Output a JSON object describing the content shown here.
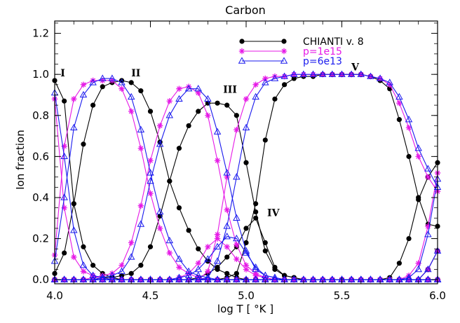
{
  "chart_data": {
    "type": "line",
    "title": "Carbon",
    "xlabel": "log T [ °K ]",
    "ylabel": "Ion fraction",
    "xlim": [
      4.0,
      6.0
    ],
    "ylim": [
      -0.02,
      1.26
    ],
    "xticks": [
      4.0,
      4.5,
      5.0,
      5.5,
      6.0
    ],
    "xtick_labels": [
      "4.0",
      "4.5",
      "5.0",
      "5.5",
      "6.0"
    ],
    "yticks": [
      0.0,
      0.2,
      0.4,
      0.6,
      0.8,
      1.0,
      1.2
    ],
    "ytick_labels": [
      "0.0",
      "0.2",
      "0.4",
      "0.6",
      "0.8",
      "1.0",
      "1.2"
    ],
    "grid": false,
    "legend_position": "top-right",
    "ion_labels": [
      {
        "text": "I",
        "x": 4.03,
        "y": 0.99
      },
      {
        "text": "II",
        "x": 4.4,
        "y": 0.99
      },
      {
        "text": "III",
        "x": 4.88,
        "y": 0.91
      },
      {
        "text": "IV",
        "x": 5.11,
        "y": 0.31
      },
      {
        "text": "V",
        "x": 5.55,
        "y": 1.02
      }
    ],
    "x": [
      4.0,
      4.05,
      4.1,
      4.15,
      4.2,
      4.25,
      4.3,
      4.35,
      4.4,
      4.45,
      4.5,
      4.55,
      4.6,
      4.65,
      4.7,
      4.75,
      4.8,
      4.85,
      4.9,
      4.95,
      5.0,
      5.05,
      5.1,
      5.15,
      5.2,
      5.25,
      5.3,
      5.35,
      5.4,
      5.45,
      5.5,
      5.55,
      5.6,
      5.65,
      5.7,
      5.75,
      5.8,
      5.85,
      5.9,
      5.95,
      6.0
    ],
    "series": [
      {
        "name": "CHIANTI v. 8",
        "group": "CHIANTI v. 8",
        "color": "#000000",
        "marker": "circle",
        "ion": "I",
        "values": [
          0.97,
          0.87,
          0.37,
          0.16,
          0.07,
          0.03,
          0.01,
          0.0,
          0.0,
          0.0,
          0.0,
          0.0,
          0.0,
          0.0,
          0.0,
          0.0,
          0.0,
          0.0,
          0.0,
          0.0,
          0.0,
          0.0,
          0.0,
          0.0,
          0.0,
          0.0,
          0.0,
          0.0,
          0.0,
          0.0,
          0.0,
          0.0,
          0.0,
          0.0,
          0.0,
          0.0,
          0.0,
          0.0,
          0.0,
          0.0,
          0.0
        ]
      },
      {
        "name": "CHIANTI v. 8",
        "group": "CHIANTI v. 8",
        "color": "#000000",
        "marker": "circle",
        "ion": "II",
        "values": [
          0.03,
          0.13,
          0.37,
          0.66,
          0.85,
          0.94,
          0.96,
          0.97,
          0.96,
          0.92,
          0.82,
          0.67,
          0.48,
          0.35,
          0.24,
          0.15,
          0.09,
          0.05,
          0.03,
          0.01,
          0.0,
          0.0,
          0.0,
          0.0,
          0.0,
          0.0,
          0.0,
          0.0,
          0.0,
          0.0,
          0.0,
          0.0,
          0.0,
          0.0,
          0.0,
          0.0,
          0.0,
          0.0,
          0.0,
          0.0,
          0.0
        ]
      },
      {
        "name": "CHIANTI v. 8",
        "group": "CHIANTI v. 8",
        "color": "#000000",
        "marker": "circle",
        "ion": "III",
        "values": [
          0.0,
          0.0,
          0.0,
          0.0,
          0.0,
          0.01,
          0.01,
          0.02,
          0.03,
          0.07,
          0.16,
          0.31,
          0.48,
          0.64,
          0.75,
          0.82,
          0.86,
          0.86,
          0.85,
          0.8,
          0.57,
          0.33,
          0.14,
          0.05,
          0.02,
          0.01,
          0.0,
          0.0,
          0.0,
          0.0,
          0.0,
          0.0,
          0.0,
          0.0,
          0.0,
          0.0,
          0.0,
          0.0,
          0.0,
          0.0,
          0.0
        ]
      },
      {
        "name": "CHIANTI v. 8",
        "group": "CHIANTI v. 8",
        "color": "#000000",
        "marker": "circle",
        "ion": "IV",
        "values": [
          0.0,
          0.0,
          0.0,
          0.0,
          0.0,
          0.0,
          0.0,
          0.0,
          0.0,
          0.0,
          0.0,
          0.0,
          0.0,
          0.0,
          0.0,
          0.01,
          0.03,
          0.06,
          0.11,
          0.16,
          0.25,
          0.3,
          0.18,
          0.06,
          0.02,
          0.01,
          0.0,
          0.0,
          0.0,
          0.0,
          0.0,
          0.0,
          0.0,
          0.0,
          0.0,
          0.0,
          0.0,
          0.0,
          0.0,
          0.0,
          0.0
        ]
      },
      {
        "name": "CHIANTI v. 8",
        "group": "CHIANTI v. 8",
        "color": "#000000",
        "marker": "circle",
        "ion": "V",
        "values": [
          0.0,
          0.0,
          0.0,
          0.0,
          0.0,
          0.0,
          0.0,
          0.0,
          0.0,
          0.0,
          0.0,
          0.0,
          0.0,
          0.0,
          0.0,
          0.0,
          0.0,
          0.0,
          0.01,
          0.03,
          0.18,
          0.37,
          0.68,
          0.88,
          0.95,
          0.98,
          0.99,
          0.99,
          1.0,
          1.0,
          1.0,
          1.0,
          1.0,
          0.99,
          0.97,
          0.93,
          0.78,
          0.6,
          0.4,
          0.27,
          0.26
        ]
      },
      {
        "name": "CHIANTI v. 8",
        "group": "CHIANTI v. 8",
        "color": "#000000",
        "marker": "circle",
        "ion": "VI",
        "values": [
          0.0,
          0.0,
          0.0,
          0.0,
          0.0,
          0.0,
          0.0,
          0.0,
          0.0,
          0.0,
          0.0,
          0.0,
          0.0,
          0.0,
          0.0,
          0.0,
          0.0,
          0.0,
          0.0,
          0.0,
          0.0,
          0.0,
          0.0,
          0.0,
          0.0,
          0.0,
          0.0,
          0.0,
          0.0,
          0.0,
          0.0,
          0.0,
          0.0,
          0.0,
          0.0,
          0.01,
          0.08,
          0.2,
          0.39,
          0.5,
          0.57
        ]
      },
      {
        "name": "CHIANTI v. 8",
        "group": "CHIANTI v. 8",
        "color": "#000000",
        "marker": "circle",
        "ion": "VII",
        "values": [
          0.0,
          0.0,
          0.0,
          0.0,
          0.0,
          0.0,
          0.0,
          0.0,
          0.0,
          0.0,
          0.0,
          0.0,
          0.0,
          0.0,
          0.0,
          0.0,
          0.0,
          0.0,
          0.0,
          0.0,
          0.0,
          0.0,
          0.0,
          0.0,
          0.0,
          0.0,
          0.0,
          0.0,
          0.0,
          0.0,
          0.0,
          0.0,
          0.0,
          0.0,
          0.0,
          0.0,
          0.0,
          0.0,
          0.0,
          0.05,
          0.14
        ]
      },
      {
        "name": "p=1e15",
        "group": "p=1e15",
        "color": "#e619e6",
        "marker": "asterisk",
        "ion": "I",
        "values": [
          0.88,
          0.35,
          0.11,
          0.04,
          0.02,
          0.0,
          0.0,
          0.0,
          0.0,
          0.0,
          0.0,
          0.0,
          0.0,
          0.0,
          0.0,
          0.0,
          0.0,
          0.0,
          0.0,
          0.0,
          0.0,
          0.0,
          0.0,
          0.0,
          0.0,
          0.0,
          0.0,
          0.0,
          0.0,
          0.0,
          0.0,
          0.0,
          0.0,
          0.0,
          0.0,
          0.0,
          0.0,
          0.0,
          0.0,
          0.0,
          0.0
        ]
      },
      {
        "name": "p=1e15",
        "group": "p=1e15",
        "color": "#e619e6",
        "marker": "asterisk",
        "ion": "II",
        "values": [
          0.12,
          0.65,
          0.88,
          0.95,
          0.97,
          0.97,
          0.97,
          0.93,
          0.82,
          0.64,
          0.42,
          0.25,
          0.13,
          0.06,
          0.03,
          0.01,
          0.0,
          0.0,
          0.0,
          0.0,
          0.0,
          0.0,
          0.0,
          0.0,
          0.0,
          0.0,
          0.0,
          0.0,
          0.0,
          0.0,
          0.0,
          0.0,
          0.0,
          0.0,
          0.0,
          0.0,
          0.0,
          0.0,
          0.0,
          0.0,
          0.0
        ]
      },
      {
        "name": "p=1e15",
        "group": "p=1e15",
        "color": "#e619e6",
        "marker": "asterisk",
        "ion": "III",
        "values": [
          0.0,
          0.0,
          0.0,
          0.0,
          0.01,
          0.02,
          0.03,
          0.07,
          0.18,
          0.36,
          0.58,
          0.75,
          0.87,
          0.93,
          0.94,
          0.91,
          0.8,
          0.58,
          0.34,
          0.17,
          0.07,
          0.03,
          0.01,
          0.0,
          0.0,
          0.0,
          0.0,
          0.0,
          0.0,
          0.0,
          0.0,
          0.0,
          0.0,
          0.0,
          0.0,
          0.0,
          0.0,
          0.0,
          0.0,
          0.0,
          0.0
        ]
      },
      {
        "name": "p=1e15",
        "group": "p=1e15",
        "color": "#e619e6",
        "marker": "asterisk",
        "ion": "IV",
        "values": [
          0.0,
          0.0,
          0.0,
          0.0,
          0.0,
          0.0,
          0.0,
          0.0,
          0.0,
          0.0,
          0.0,
          0.0,
          0.0,
          0.01,
          0.03,
          0.08,
          0.16,
          0.2,
          0.16,
          0.1,
          0.05,
          0.02,
          0.01,
          0.0,
          0.0,
          0.0,
          0.0,
          0.0,
          0.0,
          0.0,
          0.0,
          0.0,
          0.0,
          0.0,
          0.0,
          0.0,
          0.0,
          0.0,
          0.0,
          0.0,
          0.0
        ]
      },
      {
        "name": "p=1e15",
        "group": "p=1e15",
        "color": "#e619e6",
        "marker": "asterisk",
        "ion": "V",
        "values": [
          0.0,
          0.0,
          0.0,
          0.0,
          0.0,
          0.0,
          0.0,
          0.0,
          0.0,
          0.0,
          0.0,
          0.0,
          0.0,
          0.0,
          0.0,
          0.0,
          0.04,
          0.22,
          0.5,
          0.73,
          0.88,
          0.95,
          0.98,
          0.99,
          0.99,
          1.0,
          1.0,
          1.0,
          1.0,
          1.0,
          1.0,
          1.0,
          1.0,
          0.99,
          0.98,
          0.95,
          0.86,
          0.74,
          0.6,
          0.5,
          0.43
        ]
      },
      {
        "name": "p=1e15",
        "group": "p=1e15",
        "color": "#e619e6",
        "marker": "asterisk",
        "ion": "VI",
        "values": [
          0.0,
          0.0,
          0.0,
          0.0,
          0.0,
          0.0,
          0.0,
          0.0,
          0.0,
          0.0,
          0.0,
          0.0,
          0.0,
          0.0,
          0.0,
          0.0,
          0.0,
          0.0,
          0.0,
          0.0,
          0.0,
          0.0,
          0.0,
          0.0,
          0.0,
          0.0,
          0.0,
          0.0,
          0.0,
          0.0,
          0.0,
          0.0,
          0.0,
          0.0,
          0.0,
          0.0,
          0.0,
          0.02,
          0.08,
          0.26,
          0.52
        ]
      },
      {
        "name": "p=1e15",
        "group": "p=1e15",
        "color": "#e619e6",
        "marker": "asterisk",
        "ion": "VII",
        "values": [
          0.0,
          0.0,
          0.0,
          0.0,
          0.0,
          0.0,
          0.0,
          0.0,
          0.0,
          0.0,
          0.0,
          0.0,
          0.0,
          0.0,
          0.0,
          0.0,
          0.0,
          0.0,
          0.0,
          0.0,
          0.0,
          0.0,
          0.0,
          0.0,
          0.0,
          0.0,
          0.0,
          0.0,
          0.0,
          0.0,
          0.0,
          0.0,
          0.0,
          0.0,
          0.0,
          0.0,
          0.0,
          0.0,
          0.0,
          0.05,
          0.14
        ]
      },
      {
        "name": "p=6e13",
        "group": "p=6e13",
        "color": "#1a1aee",
        "marker": "triangle",
        "ion": "I",
        "values": [
          0.91,
          0.6,
          0.24,
          0.07,
          0.02,
          0.01,
          0.0,
          0.0,
          0.0,
          0.0,
          0.0,
          0.0,
          0.0,
          0.0,
          0.0,
          0.0,
          0.0,
          0.0,
          0.0,
          0.0,
          0.0,
          0.0,
          0.0,
          0.0,
          0.0,
          0.0,
          0.0,
          0.0,
          0.0,
          0.0,
          0.0,
          0.0,
          0.0,
          0.0,
          0.0,
          0.0,
          0.0,
          0.0,
          0.0,
          0.0,
          0.0
        ]
      },
      {
        "name": "p=6e13",
        "group": "p=6e13",
        "color": "#1a1aee",
        "marker": "triangle",
        "ion": "II",
        "values": [
          0.09,
          0.4,
          0.74,
          0.9,
          0.96,
          0.98,
          0.98,
          0.96,
          0.89,
          0.73,
          0.52,
          0.33,
          0.19,
          0.1,
          0.04,
          0.02,
          0.01,
          0.0,
          0.0,
          0.0,
          0.0,
          0.0,
          0.0,
          0.0,
          0.0,
          0.0,
          0.0,
          0.0,
          0.0,
          0.0,
          0.0,
          0.0,
          0.0,
          0.0,
          0.0,
          0.0,
          0.0,
          0.0,
          0.0,
          0.0,
          0.0
        ]
      },
      {
        "name": "p=6e13",
        "group": "p=6e13",
        "color": "#1a1aee",
        "marker": "triangle",
        "ion": "III",
        "values": [
          0.0,
          0.0,
          0.0,
          0.0,
          0.0,
          0.01,
          0.02,
          0.04,
          0.11,
          0.27,
          0.48,
          0.66,
          0.8,
          0.88,
          0.93,
          0.93,
          0.88,
          0.72,
          0.52,
          0.3,
          0.14,
          0.05,
          0.02,
          0.01,
          0.0,
          0.0,
          0.0,
          0.0,
          0.0,
          0.0,
          0.0,
          0.0,
          0.0,
          0.0,
          0.0,
          0.0,
          0.0,
          0.0,
          0.0,
          0.0,
          0.0
        ]
      },
      {
        "name": "p=6e13",
        "group": "p=6e13",
        "color": "#1a1aee",
        "marker": "triangle",
        "ion": "IV",
        "values": [
          0.0,
          0.0,
          0.0,
          0.0,
          0.0,
          0.0,
          0.0,
          0.0,
          0.0,
          0.0,
          0.0,
          0.0,
          0.0,
          0.01,
          0.02,
          0.05,
          0.1,
          0.16,
          0.21,
          0.2,
          0.13,
          0.06,
          0.02,
          0.01,
          0.0,
          0.0,
          0.0,
          0.0,
          0.0,
          0.0,
          0.0,
          0.0,
          0.0,
          0.0,
          0.0,
          0.0,
          0.0,
          0.0,
          0.0,
          0.0,
          0.0
        ]
      },
      {
        "name": "p=6e13",
        "group": "p=6e13",
        "color": "#1a1aee",
        "marker": "triangle",
        "ion": "V",
        "values": [
          0.0,
          0.0,
          0.0,
          0.0,
          0.0,
          0.0,
          0.0,
          0.0,
          0.0,
          0.0,
          0.0,
          0.0,
          0.0,
          0.0,
          0.0,
          0.0,
          0.01,
          0.09,
          0.26,
          0.5,
          0.74,
          0.89,
          0.96,
          0.98,
          0.99,
          1.0,
          1.0,
          1.0,
          1.0,
          1.0,
          1.0,
          1.0,
          1.0,
          0.99,
          0.98,
          0.96,
          0.89,
          0.78,
          0.64,
          0.54,
          0.45
        ]
      },
      {
        "name": "p=6e13",
        "group": "p=6e13",
        "color": "#1a1aee",
        "marker": "triangle",
        "ion": "VI",
        "values": [
          0.0,
          0.0,
          0.0,
          0.0,
          0.0,
          0.0,
          0.0,
          0.0,
          0.0,
          0.0,
          0.0,
          0.0,
          0.0,
          0.0,
          0.0,
          0.0,
          0.0,
          0.0,
          0.0,
          0.0,
          0.0,
          0.0,
          0.0,
          0.0,
          0.0,
          0.0,
          0.0,
          0.0,
          0.0,
          0.0,
          0.0,
          0.0,
          0.0,
          0.0,
          0.0,
          0.0,
          0.0,
          0.01,
          0.05,
          0.22,
          0.49
        ]
      },
      {
        "name": "p=6e13",
        "group": "p=6e13",
        "color": "#1a1aee",
        "marker": "triangle",
        "ion": "VII",
        "values": [
          0.0,
          0.0,
          0.0,
          0.0,
          0.0,
          0.0,
          0.0,
          0.0,
          0.0,
          0.0,
          0.0,
          0.0,
          0.0,
          0.0,
          0.0,
          0.0,
          0.0,
          0.0,
          0.0,
          0.0,
          0.0,
          0.0,
          0.0,
          0.0,
          0.0,
          0.0,
          0.0,
          0.0,
          0.0,
          0.0,
          0.0,
          0.0,
          0.0,
          0.0,
          0.0,
          0.0,
          0.0,
          0.0,
          0.0,
          0.05,
          0.14
        ]
      }
    ],
    "legend": [
      {
        "label": "CHIANTI v. 8",
        "color": "#000000",
        "marker": "circle"
      },
      {
        "label": "p=1e15",
        "color": "#e619e6",
        "marker": "asterisk"
      },
      {
        "label": "p=6e13",
        "color": "#1a1aee",
        "marker": "triangle"
      }
    ]
  }
}
